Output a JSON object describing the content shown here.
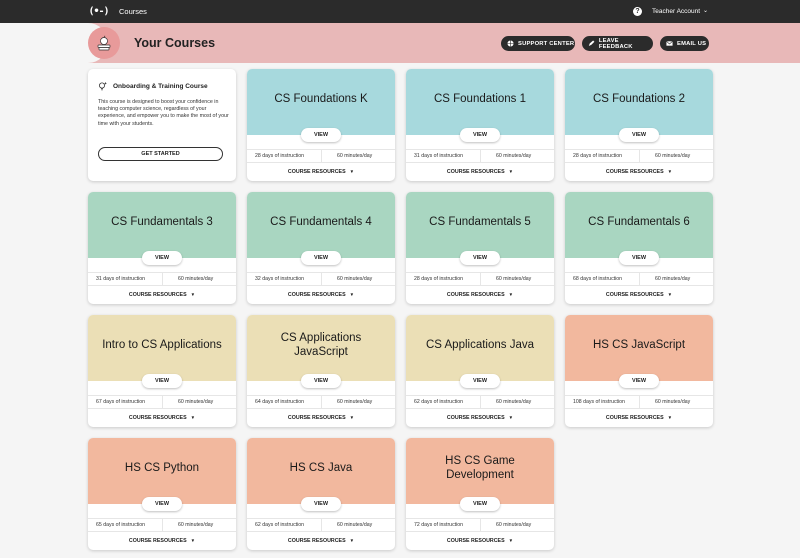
{
  "topbar": {
    "logo_text": "(•-)",
    "nav_label": "Courses",
    "help_glyph": "?",
    "account_label": "Teacher Account",
    "account_chevron": "⌄"
  },
  "header": {
    "title": "Your Courses",
    "buttons": [
      {
        "label": "SUPPORT CENTER",
        "icon": "globe-icon"
      },
      {
        "label": "LEAVE FEEDBACK",
        "icon": "feedback-icon"
      },
      {
        "label": "EMAIL US",
        "icon": "mail-icon"
      }
    ]
  },
  "onboarding": {
    "title": "Onboarding & Training Course",
    "description": "This course is designed to boost your confidence in teaching computer science, regardless of your experience, and empower you to make the most of your time with your students.",
    "button_label": "GET STARTED"
  },
  "colors": {
    "teal": "#a7d9dd",
    "green": "#a9d6c1",
    "yellow": "#ebdfb6",
    "salmon": "#f2b89e",
    "header_pink": "#e8b8b8",
    "dark": "#2b2b2b"
  },
  "card_labels": {
    "view": "VIEW",
    "resources": "COURSE RESOURCES",
    "resources_chevron": "▼"
  },
  "courses": [
    {
      "title": "CS Foundations K",
      "days": "28 days of instruction",
      "minutes": "60 minutes/day",
      "color": "teal"
    },
    {
      "title": "CS Foundations 1",
      "days": "31 days of instruction",
      "minutes": "60 minutes/day",
      "color": "teal"
    },
    {
      "title": "CS Foundations 2",
      "days": "28 days of instruction",
      "minutes": "60 minutes/day",
      "color": "teal"
    },
    {
      "title": "CS Fundamentals 3",
      "days": "31 days of instruction",
      "minutes": "60 minutes/day",
      "color": "green"
    },
    {
      "title": "CS Fundamentals 4",
      "days": "32 days of instruction",
      "minutes": "60 minutes/day",
      "color": "green"
    },
    {
      "title": "CS Fundamentals 5",
      "days": "28 days of instruction",
      "minutes": "60 minutes/day",
      "color": "green"
    },
    {
      "title": "CS Fundamentals 6",
      "days": "68 days of instruction",
      "minutes": "60 minutes/day",
      "color": "green"
    },
    {
      "title": "Intro to CS Applications",
      "days": "67 days of instruction",
      "minutes": "60 minutes/day",
      "color": "yellow"
    },
    {
      "title": "CS Applications JavaScript",
      "days": "64 days of instruction",
      "minutes": "60 minutes/day",
      "color": "yellow"
    },
    {
      "title": "CS Applications Java",
      "days": "62 days of instruction",
      "minutes": "60 minutes/day",
      "color": "yellow"
    },
    {
      "title": "HS CS JavaScript",
      "days": "108 days of instruction",
      "minutes": "60 minutes/day",
      "color": "salmon"
    },
    {
      "title": "HS CS Python",
      "days": "65 days of instruction",
      "minutes": "60 minutes/day",
      "color": "salmon"
    },
    {
      "title": "HS CS Java",
      "days": "62 days of instruction",
      "minutes": "60 minutes/day",
      "color": "salmon"
    },
    {
      "title": "HS CS Game Development",
      "days": "72 days of instruction",
      "minutes": "60 minutes/day",
      "color": "salmon"
    }
  ]
}
